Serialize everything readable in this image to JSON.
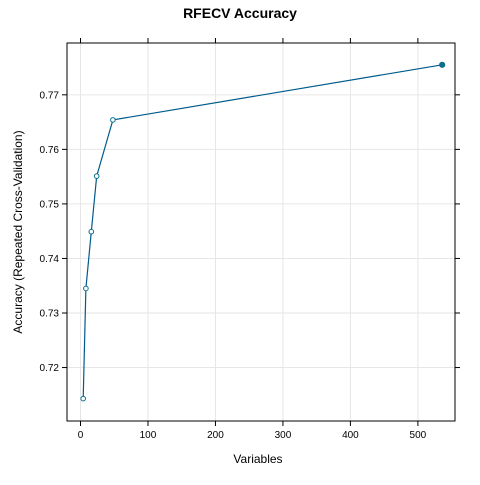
{
  "chart_data": {
    "type": "line",
    "title": "RFECV Accuracy",
    "xlabel": "Variables",
    "ylabel": "Accuracy (Repeated Cross-Validation)",
    "xlim": [
      -20,
      555
    ],
    "ylim": [
      0.7102,
      0.7795
    ],
    "x_ticks": [
      0,
      100,
      200,
      300,
      400,
      500
    ],
    "y_ticks": [
      0.72,
      0.73,
      0.74,
      0.75,
      0.76,
      0.77
    ],
    "grid": true,
    "series": [
      {
        "x": [
          4,
          8,
          16,
          24,
          48,
          536
        ],
        "y": [
          0.7143,
          0.7345,
          0.7449,
          0.7551,
          0.7654,
          0.7755
        ]
      }
    ],
    "highlighted_point_index": 5,
    "colors": {
      "line": "#0080ff",
      "line_dark": "#005a8c",
      "point": "#0a6e8c",
      "grid": "#e6e6e6",
      "frame": "#000000"
    }
  }
}
